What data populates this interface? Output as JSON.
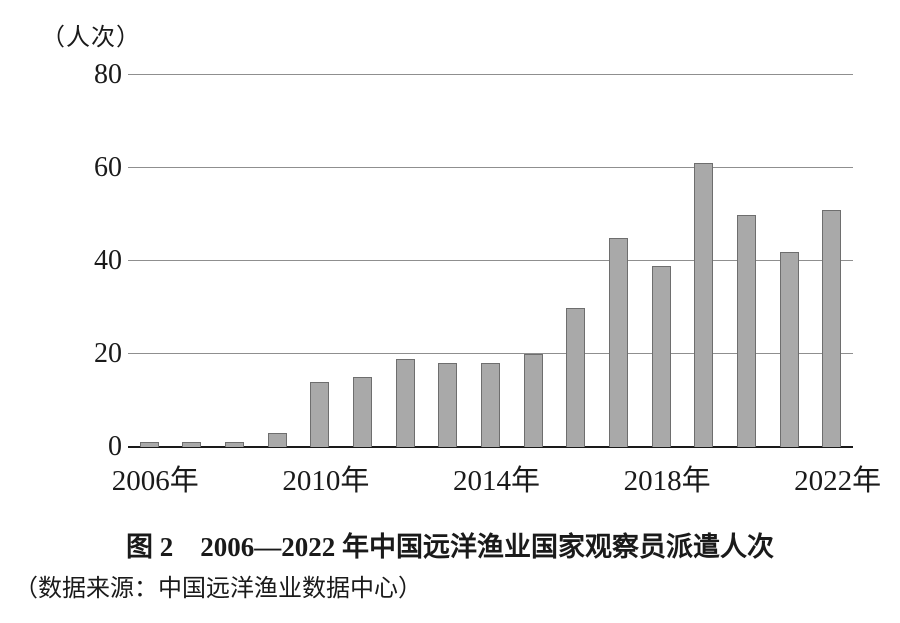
{
  "page": {
    "unit_label": "（人次）",
    "caption": "图 2　2006—2022 年中国远洋渔业国家观察员派遣人次",
    "source": "（数据来源：中国远洋渔业数据中心）"
  },
  "chart_data": {
    "type": "bar",
    "title": "图2 2006—2022年中国远洋渔业国家观察员派遣人次",
    "ylabel": "（人次）",
    "xlabel": "",
    "categories": [
      "2006",
      "2007",
      "2008",
      "2009",
      "2010",
      "2011",
      "2012",
      "2013",
      "2014",
      "2015",
      "2016",
      "2017",
      "2018",
      "2019",
      "2020",
      "2021",
      "2022"
    ],
    "values": [
      1,
      1,
      1,
      3,
      14,
      15,
      19,
      18,
      18,
      20,
      30,
      45,
      39,
      61,
      50,
      42,
      51
    ],
    "ylim": [
      0,
      80
    ],
    "yticks": [
      0,
      20,
      40,
      60,
      80
    ],
    "x_tick_labels": [
      {
        "index": 0,
        "label": "2006年"
      },
      {
        "index": 4,
        "label": "2010年"
      },
      {
        "index": 8,
        "label": "2014年"
      },
      {
        "index": 12,
        "label": "2018年"
      },
      {
        "index": 16,
        "label": "2022年"
      }
    ],
    "grid": "horizontal",
    "legend": "none",
    "bar_fill": "#a9a9a9",
    "bar_border": "#6e6e6e",
    "source_note": "（数据来源：中国远洋渔业数据中心）"
  }
}
